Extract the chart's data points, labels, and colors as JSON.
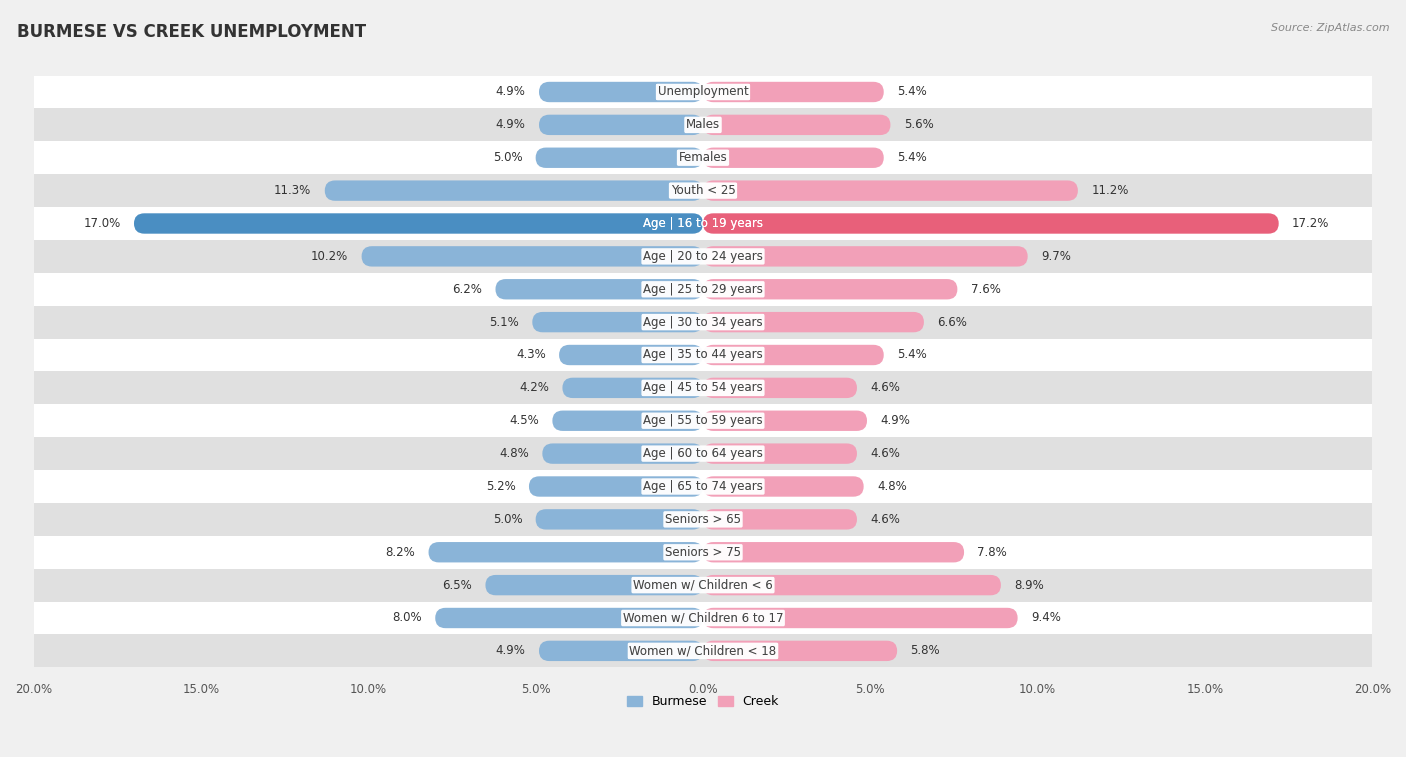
{
  "title": "BURMESE VS CREEK UNEMPLOYMENT",
  "source": "Source: ZipAtlas.com",
  "categories": [
    "Unemployment",
    "Males",
    "Females",
    "Youth < 25",
    "Age | 16 to 19 years",
    "Age | 20 to 24 years",
    "Age | 25 to 29 years",
    "Age | 30 to 34 years",
    "Age | 35 to 44 years",
    "Age | 45 to 54 years",
    "Age | 55 to 59 years",
    "Age | 60 to 64 years",
    "Age | 65 to 74 years",
    "Seniors > 65",
    "Seniors > 75",
    "Women w/ Children < 6",
    "Women w/ Children 6 to 17",
    "Women w/ Children < 18"
  ],
  "burmese": [
    4.9,
    4.9,
    5.0,
    11.3,
    17.0,
    10.2,
    6.2,
    5.1,
    4.3,
    4.2,
    4.5,
    4.8,
    5.2,
    5.0,
    8.2,
    6.5,
    8.0,
    4.9
  ],
  "creek": [
    5.4,
    5.6,
    5.4,
    11.2,
    17.2,
    9.7,
    7.6,
    6.6,
    5.4,
    4.6,
    4.9,
    4.6,
    4.8,
    4.6,
    7.8,
    8.9,
    9.4,
    5.8
  ],
  "burmese_color": "#8AB4D8",
  "creek_color": "#F2A0B8",
  "highlight_burmese_color": "#4A8EC2",
  "highlight_creek_color": "#E8607A",
  "axis_max": 20.0,
  "bg_color": "#f0f0f0",
  "bar_row_color": "#ffffff",
  "alt_row_color": "#e0e0e0",
  "label_fontsize": 8.5,
  "value_fontsize": 8.5,
  "title_fontsize": 12,
  "legend_burmese": "Burmese",
  "legend_creek": "Creek"
}
